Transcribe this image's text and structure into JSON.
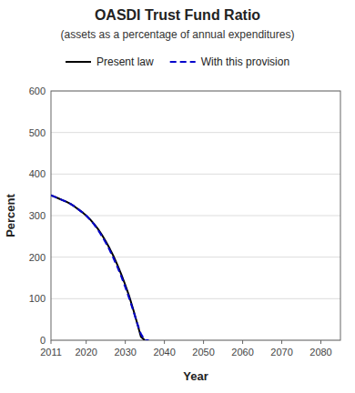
{
  "chart_data": {
    "type": "line",
    "title": "OASDI Trust Fund Ratio",
    "subtitle": "(assets as a percentage of annual expenditures)",
    "xlabel": "Year",
    "ylabel": "Percent",
    "xlim": [
      2011,
      2085
    ],
    "ylim": [
      0,
      600
    ],
    "xticks": [
      2011,
      2020,
      2030,
      2040,
      2050,
      2060,
      2070,
      2080
    ],
    "yticks": [
      0,
      100,
      200,
      300,
      400,
      500,
      600
    ],
    "grid": true,
    "legend": "top",
    "series": [
      {
        "name": "Present law",
        "color": "#000000",
        "line_style": "solid",
        "x": [
          2011,
          2012,
          2013,
          2014,
          2015,
          2016,
          2017,
          2018,
          2019,
          2020,
          2021,
          2022,
          2023,
          2024,
          2025,
          2026,
          2027,
          2028,
          2029,
          2030,
          2031,
          2032,
          2033,
          2034,
          2035
        ],
        "values": [
          349,
          345,
          341,
          337,
          333,
          328,
          322,
          315,
          308,
          300,
          291,
          280,
          268,
          254,
          238,
          221,
          202,
          181,
          158,
          133,
          106,
          75,
          42,
          8,
          0
        ]
      },
      {
        "name": "With this provision",
        "color": "#0000cc",
        "line_style": "dashed",
        "x": [
          2011,
          2012,
          2013,
          2014,
          2015,
          2016,
          2017,
          2018,
          2019,
          2020,
          2021,
          2022,
          2023,
          2024,
          2025,
          2026,
          2027,
          2028,
          2029,
          2030,
          2031,
          2032,
          2033,
          2034,
          2035,
          2036
        ],
        "values": [
          349,
          345,
          341,
          337,
          333,
          328,
          322,
          315,
          308,
          300,
          290,
          279,
          266,
          251,
          235,
          217,
          197,
          176,
          153,
          128,
          101,
          72,
          42,
          15,
          0,
          0
        ]
      }
    ]
  }
}
